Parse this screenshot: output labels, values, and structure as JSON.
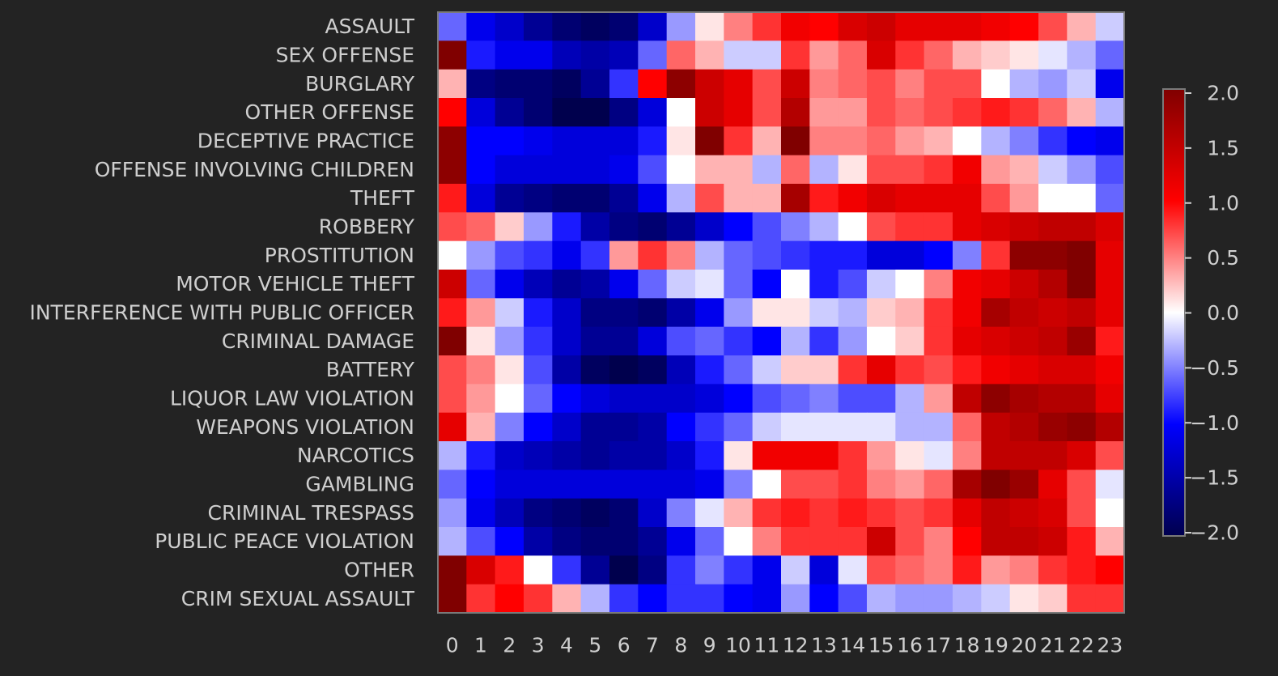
{
  "chart_data": {
    "type": "heatmap",
    "title": "",
    "xlabel": "",
    "ylabel": "",
    "x": [
      "0",
      "1",
      "2",
      "3",
      "4",
      "5",
      "6",
      "7",
      "8",
      "9",
      "10",
      "11",
      "12",
      "13",
      "14",
      "15",
      "16",
      "17",
      "18",
      "19",
      "20",
      "21",
      "22",
      "23"
    ],
    "y": [
      "ASSAULT",
      "SEX OFFENSE",
      "BURGLARY",
      "OTHER OFFENSE",
      "DECEPTIVE PRACTICE",
      "OFFENSE INVOLVING CHILDREN",
      "THEFT",
      "ROBBERY",
      "PROSTITUTION",
      "MOTOR VEHICLE THEFT",
      "INTERFERENCE WITH PUBLIC OFFICER",
      "CRIMINAL DAMAGE",
      "BATTERY",
      "LIQUOR LAW VIOLATION",
      "WEAPONS VIOLATION",
      "NARCOTICS",
      "GAMBLING",
      "CRIMINAL TRESPASS",
      "PUBLIC PEACE VIOLATION",
      "OTHER",
      "CRIM SEXUAL ASSAULT"
    ],
    "values": [
      [
        -0.6,
        -1.1,
        -1.3,
        -1.6,
        -1.8,
        -1.9,
        -1.8,
        -1.3,
        -0.4,
        0.1,
        0.5,
        0.8,
        1.1,
        1.0,
        1.3,
        1.4,
        1.2,
        1.2,
        1.2,
        1.1,
        1.0,
        0.7,
        0.3,
        -0.2
      ],
      [
        2.0,
        -0.9,
        -1.1,
        -1.1,
        -1.4,
        -1.5,
        -1.4,
        -0.6,
        0.6,
        0.3,
        -0.2,
        -0.2,
        0.8,
        0.4,
        0.6,
        1.3,
        0.8,
        0.6,
        0.3,
        0.2,
        0.1,
        -0.1,
        -0.3,
        -0.6
      ],
      [
        0.3,
        -1.7,
        -1.8,
        -1.8,
        -1.9,
        -1.6,
        -0.8,
        1.0,
        1.9,
        1.4,
        1.2,
        0.7,
        1.4,
        0.5,
        0.6,
        0.7,
        0.5,
        0.7,
        0.7,
        0.0,
        -0.3,
        -0.4,
        -0.2,
        -1.1
      ],
      [
        1.0,
        -1.2,
        -1.6,
        -1.8,
        -2.0,
        -2.0,
        -1.7,
        -1.2,
        0.0,
        1.4,
        1.2,
        0.7,
        1.6,
        0.4,
        0.4,
        0.7,
        0.6,
        0.7,
        0.8,
        0.9,
        0.8,
        0.6,
        0.3,
        -0.3
      ],
      [
        1.9,
        -1.0,
        -1.0,
        -1.1,
        -1.2,
        -1.2,
        -1.2,
        -0.9,
        0.1,
        2.0,
        0.8,
        0.3,
        2.0,
        0.5,
        0.5,
        0.6,
        0.4,
        0.3,
        0.0,
        -0.3,
        -0.5,
        -0.8,
        -1.0,
        -1.1
      ],
      [
        1.9,
        -1.0,
        -1.2,
        -1.2,
        -1.2,
        -1.2,
        -1.1,
        -0.7,
        0.0,
        0.3,
        0.3,
        -0.3,
        0.6,
        -0.3,
        0.1,
        0.7,
        0.7,
        0.8,
        1.1,
        0.4,
        0.3,
        -0.2,
        -0.4,
        -0.7
      ],
      [
        0.9,
        -1.2,
        -1.6,
        -1.7,
        -1.8,
        -1.8,
        -1.6,
        -1.1,
        -0.3,
        0.7,
        0.3,
        0.3,
        1.7,
        0.9,
        1.1,
        1.3,
        1.2,
        1.2,
        1.2,
        0.7,
        0.4,
        0.0,
        0.0,
        -0.6
      ],
      [
        0.7,
        0.6,
        0.2,
        -0.4,
        -0.9,
        -1.5,
        -1.7,
        -1.8,
        -1.6,
        -1.3,
        -1.0,
        -0.7,
        -0.5,
        -0.3,
        0.0,
        0.7,
        0.8,
        0.8,
        1.2,
        1.3,
        1.4,
        1.5,
        1.5,
        1.3
      ],
      [
        0.0,
        -0.4,
        -0.7,
        -0.8,
        -1.1,
        -0.8,
        0.4,
        0.8,
        0.5,
        -0.3,
        -0.6,
        -0.7,
        -0.8,
        -0.9,
        -0.9,
        -1.2,
        -1.2,
        -1.0,
        -0.5,
        0.8,
        1.9,
        1.9,
        2.0,
        1.2
      ],
      [
        1.4,
        -0.6,
        -1.1,
        -1.4,
        -1.6,
        -1.5,
        -1.1,
        -0.6,
        -0.2,
        -0.1,
        -0.6,
        -1.0,
        0.0,
        -0.9,
        -0.7,
        -0.2,
        0.0,
        0.5,
        1.1,
        1.2,
        1.4,
        1.6,
        2.0,
        1.2
      ],
      [
        0.9,
        0.4,
        -0.2,
        -0.9,
        -1.3,
        -1.7,
        -1.7,
        -1.8,
        -1.5,
        -1.1,
        -0.4,
        0.1,
        0.1,
        -0.2,
        -0.3,
        0.2,
        0.3,
        0.8,
        1.1,
        1.7,
        1.5,
        1.4,
        1.5,
        1.2
      ],
      [
        2.0,
        0.1,
        -0.4,
        -0.8,
        -1.3,
        -1.6,
        -1.6,
        -1.2,
        -0.7,
        -0.6,
        -0.8,
        -1.0,
        -0.3,
        -0.8,
        -0.4,
        0.0,
        0.2,
        0.8,
        1.2,
        1.3,
        1.4,
        1.5,
        1.8,
        0.9
      ],
      [
        0.7,
        0.5,
        0.1,
        -0.7,
        -1.5,
        -1.9,
        -2.0,
        -1.9,
        -1.4,
        -0.9,
        -0.6,
        -0.2,
        0.2,
        0.2,
        0.8,
        1.2,
        0.8,
        0.7,
        0.9,
        1.1,
        1.2,
        1.3,
        1.3,
        1.1
      ],
      [
        0.7,
        0.4,
        0.0,
        -0.6,
        -1.0,
        -1.2,
        -1.3,
        -1.3,
        -1.3,
        -1.2,
        -1.0,
        -0.7,
        -0.6,
        -0.5,
        -0.7,
        -0.7,
        -0.3,
        0.4,
        1.5,
        1.9,
        1.7,
        1.6,
        1.6,
        1.2
      ],
      [
        1.2,
        0.3,
        -0.5,
        -1.0,
        -1.3,
        -1.6,
        -1.6,
        -1.5,
        -1.0,
        -0.8,
        -0.6,
        -0.2,
        -0.1,
        -0.1,
        -0.1,
        -0.1,
        -0.3,
        -0.3,
        0.6,
        1.5,
        1.6,
        1.8,
        1.9,
        1.6
      ],
      [
        -0.3,
        -0.9,
        -1.3,
        -1.4,
        -1.5,
        -1.6,
        -1.5,
        -1.5,
        -1.3,
        -0.9,
        0.1,
        1.1,
        1.1,
        1.1,
        0.8,
        0.4,
        0.1,
        -0.1,
        0.5,
        1.5,
        1.5,
        1.5,
        1.3,
        0.7
      ],
      [
        -0.6,
        -1.0,
        -1.2,
        -1.2,
        -1.2,
        -1.2,
        -1.2,
        -1.2,
        -1.2,
        -1.1,
        -0.5,
        0.0,
        0.7,
        0.7,
        0.8,
        0.5,
        0.4,
        0.6,
        1.7,
        2.0,
        1.8,
        1.2,
        0.7,
        -0.1
      ],
      [
        -0.4,
        -1.1,
        -1.4,
        -1.7,
        -1.8,
        -1.9,
        -1.8,
        -1.3,
        -0.5,
        -0.1,
        0.3,
        0.8,
        0.9,
        0.8,
        0.9,
        0.8,
        0.7,
        0.8,
        1.2,
        1.5,
        1.4,
        1.3,
        0.7,
        0.0
      ],
      [
        -0.3,
        -0.7,
        -1.0,
        -1.5,
        -1.7,
        -1.8,
        -1.8,
        -1.6,
        -1.1,
        -0.6,
        0.0,
        0.5,
        0.8,
        0.8,
        0.8,
        1.4,
        0.7,
        0.5,
        1.0,
        1.5,
        1.5,
        1.4,
        0.9,
        0.3
      ],
      [
        2.0,
        1.3,
        0.9,
        0.0,
        -0.8,
        -1.6,
        -2.0,
        -1.7,
        -0.8,
        -0.5,
        -0.8,
        -1.1,
        -0.2,
        -1.2,
        -0.1,
        0.7,
        0.6,
        0.5,
        0.9,
        0.4,
        0.5,
        0.8,
        0.9,
        1.0
      ],
      [
        2.0,
        0.8,
        1.0,
        0.8,
        0.3,
        -0.3,
        -0.8,
        -1.0,
        -0.8,
        -0.8,
        -1.0,
        -1.1,
        -0.4,
        -1.0,
        -0.7,
        -0.3,
        -0.4,
        -0.4,
        -0.3,
        -0.2,
        0.1,
        0.2,
        0.8,
        0.8
      ]
    ],
    "vmin": -2.0,
    "vmax": 2.0,
    "colormap": "seismic",
    "colorbar_ticks": [
      "2.0",
      "1.5",
      "1.0",
      "0.5",
      "0.0",
      "−0.5",
      "−1.0",
      "−1.5",
      "−2.0"
    ],
    "colorbar_tick_values": [
      2.0,
      1.5,
      1.0,
      0.5,
      0.0,
      -0.5,
      -1.0,
      -1.5,
      -2.0
    ],
    "colors": {
      "background": "#232323",
      "text": "#cfcfcf",
      "frame": "#7a7a7a"
    }
  }
}
